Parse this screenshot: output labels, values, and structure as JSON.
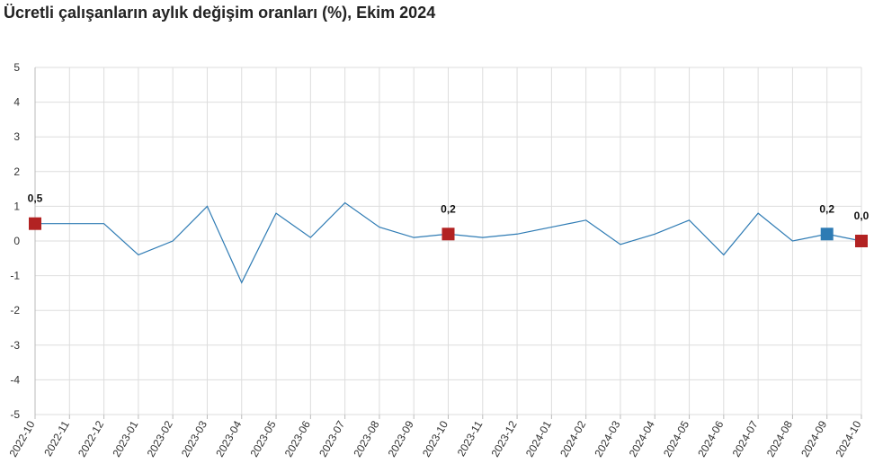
{
  "chart_data": {
    "type": "line",
    "title": "Ücretli çalışanların aylık değişim oranları (%), Ekim 2024",
    "xlabel": "",
    "ylabel": "",
    "ylim": [
      -5,
      5
    ],
    "yticks": [
      "5",
      "4",
      "3",
      "2",
      "1",
      "0",
      "-1",
      "-2",
      "-3",
      "-4",
      "-5"
    ],
    "grid": true,
    "categories": [
      "2022-10",
      "2022-11",
      "2022-12",
      "2023-01",
      "2023-02",
      "2023-03",
      "2023-04",
      "2023-05",
      "2023-06",
      "2023-07",
      "2023-08",
      "2023-09",
      "2023-10",
      "2023-11",
      "2023-12",
      "2024-01",
      "2024-02",
      "2024-03",
      "2024-04",
      "2024-05",
      "2024-06",
      "2024-07",
      "2024-08",
      "2024-09",
      "2024-10"
    ],
    "series": [
      {
        "values": [
          0.5,
          0.5,
          0.5,
          -0.4,
          0.0,
          1.0,
          -1.2,
          0.8,
          0.1,
          1.1,
          0.4,
          0.1,
          0.2,
          0.1,
          0.2,
          0.4,
          0.6,
          -0.1,
          0.2,
          0.6,
          -0.4,
          0.8,
          0.0,
          0.2,
          0.0
        ],
        "color": "#2e7bb4"
      }
    ],
    "markers": [
      {
        "index": 0,
        "label": "0,5",
        "color": "#b22222"
      },
      {
        "index": 12,
        "label": "0,2",
        "color": "#b22222"
      },
      {
        "index": 23,
        "label": "0,2",
        "color": "#2e7bb4"
      },
      {
        "index": 24,
        "label": "0,0",
        "color": "#b22222"
      }
    ],
    "colors": {
      "grid": "#dddddd",
      "axis": "#bbbbbb",
      "line": "#2e7bb4"
    }
  }
}
